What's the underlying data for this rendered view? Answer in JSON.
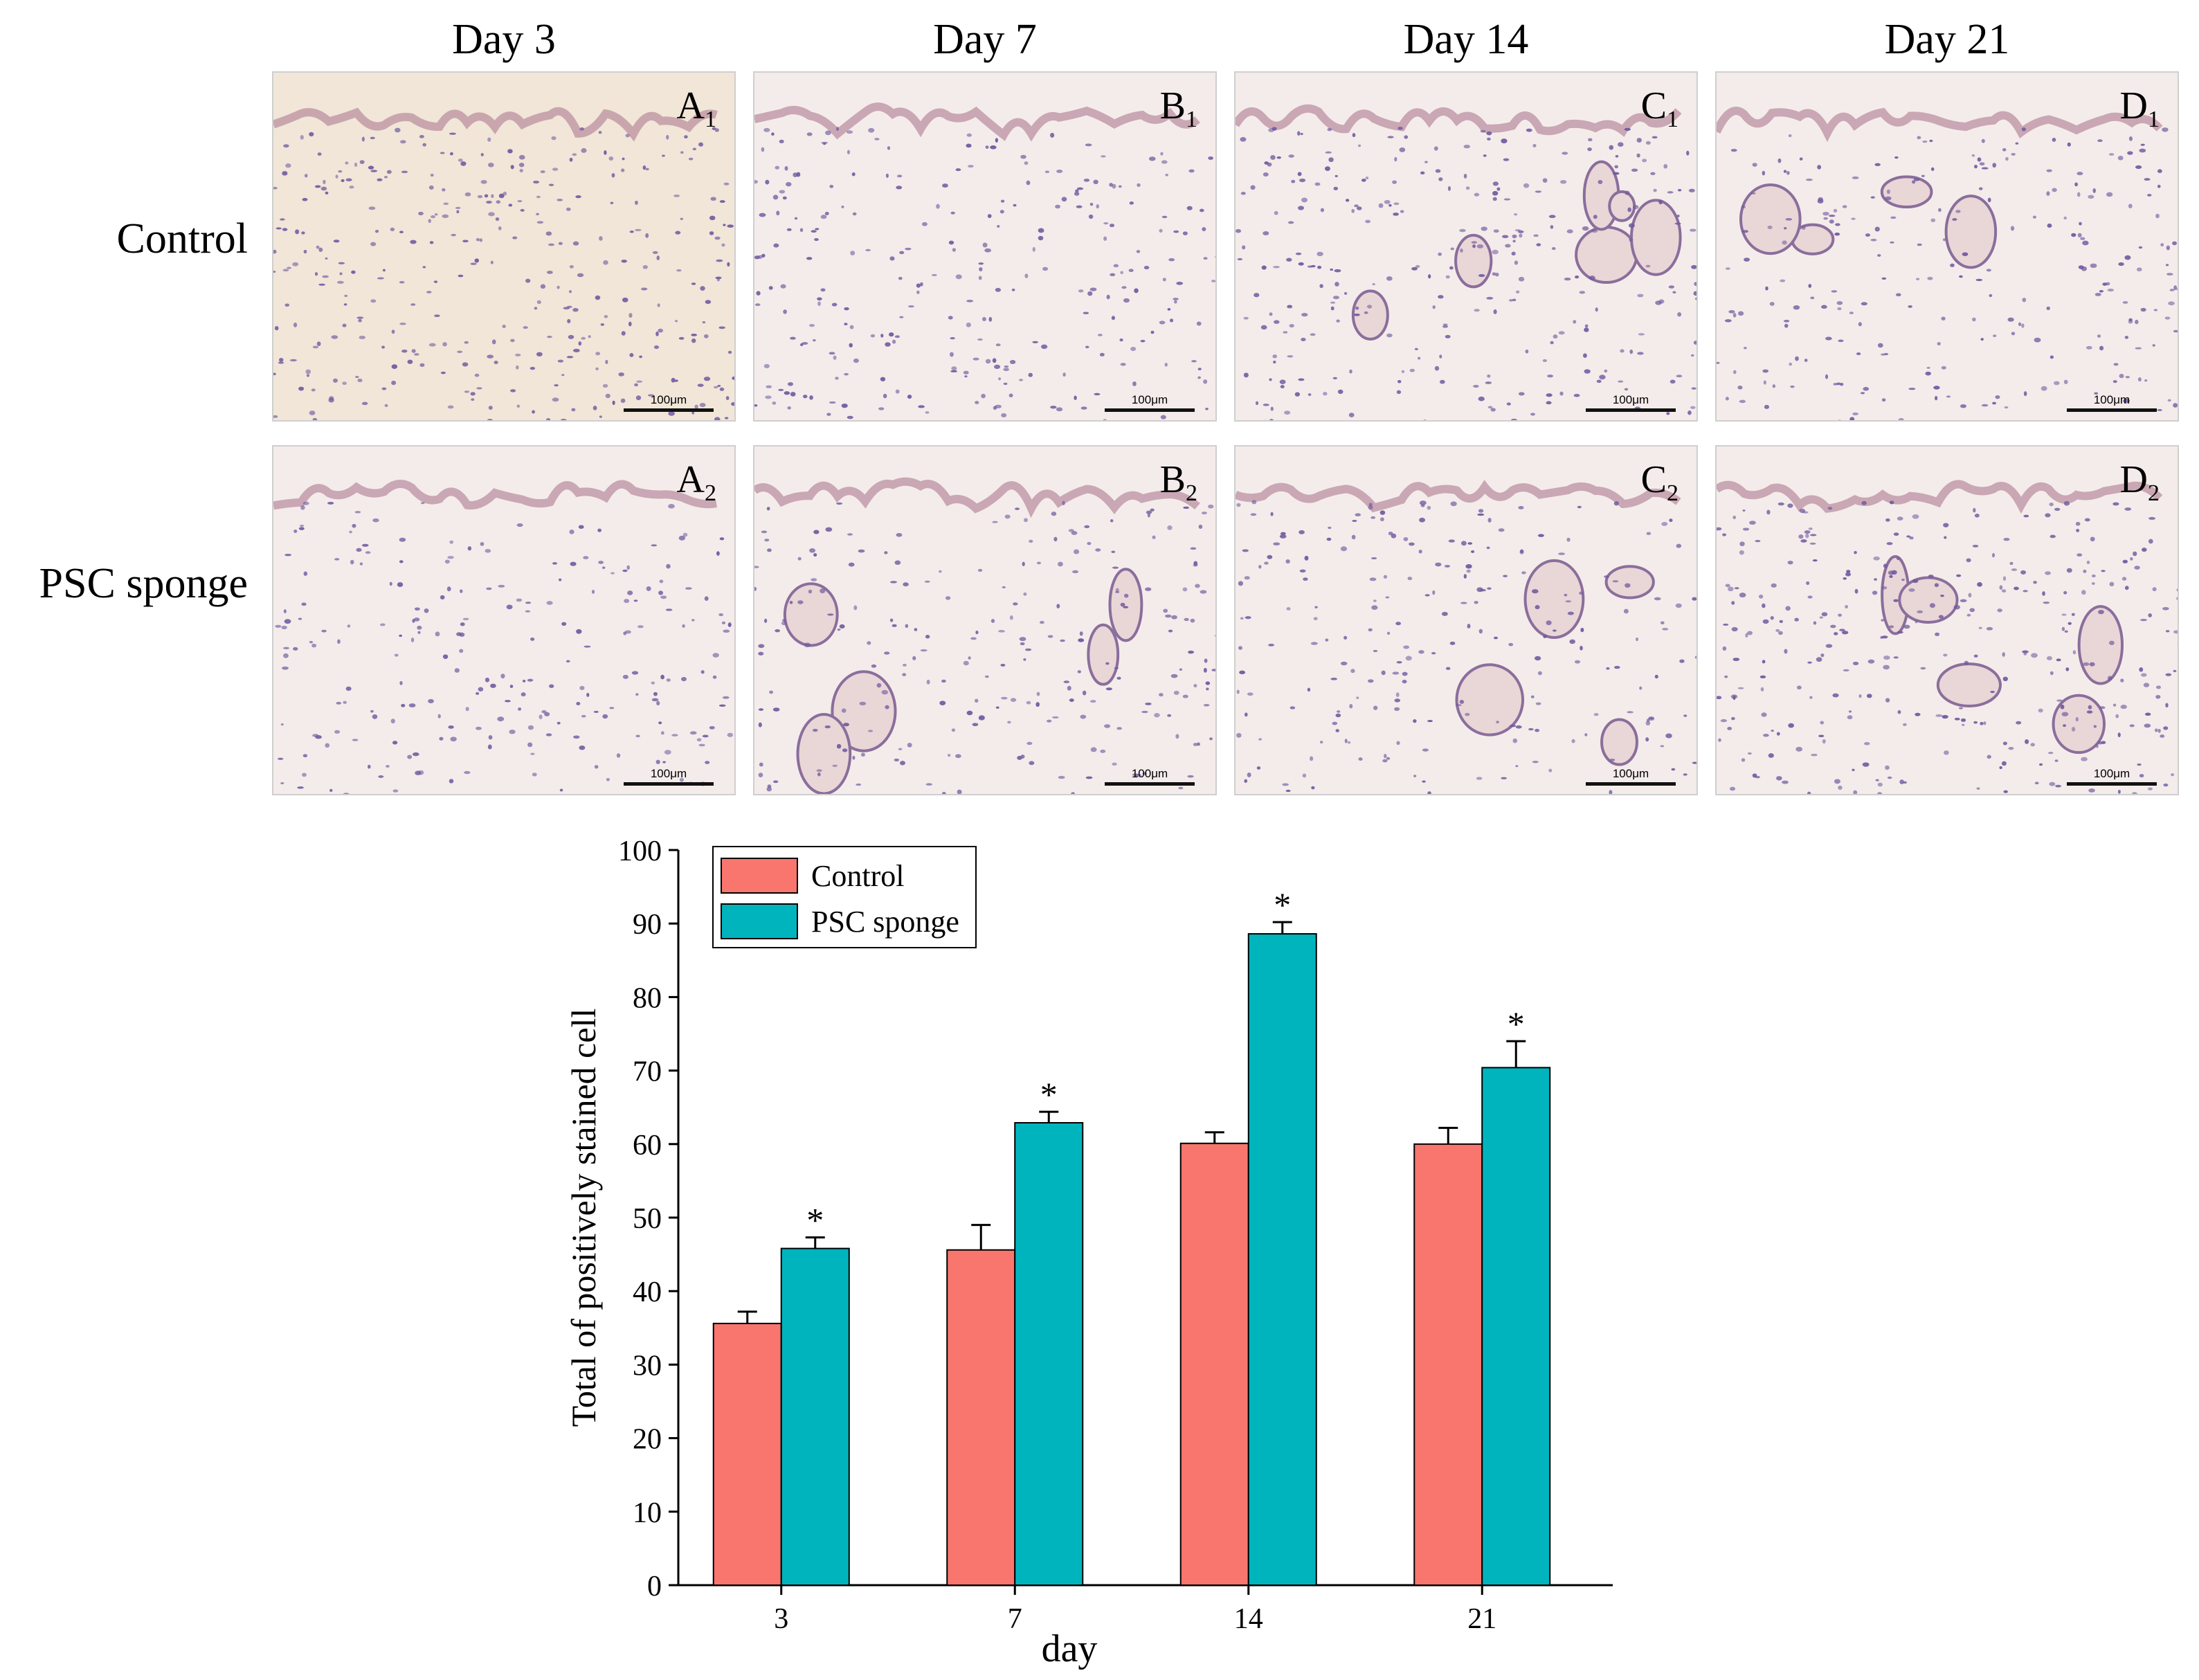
{
  "columns": [
    "Day 3",
    "Day 7",
    "Day 14",
    "Day 21"
  ],
  "rows": [
    "Control",
    "PSC sponge"
  ],
  "panels": [
    {
      "letter": "A",
      "sub": "1",
      "scale": "100μm"
    },
    {
      "letter": "B",
      "sub": "1",
      "scale": "100μm"
    },
    {
      "letter": "C",
      "sub": "1",
      "scale": "100μm"
    },
    {
      "letter": "D",
      "sub": "1",
      "scale": "100μm"
    },
    {
      "letter": "A",
      "sub": "2",
      "scale": "100μm"
    },
    {
      "letter": "B",
      "sub": "2",
      "scale": "100μm"
    },
    {
      "letter": "C",
      "sub": "2",
      "scale": "100μm"
    },
    {
      "letter": "D",
      "sub": "2",
      "scale": "100μm"
    }
  ],
  "colors": {
    "control": "#f8766d",
    "psc": "#00b4be",
    "tissue_bg": "#f4ecea",
    "nuclei": "#6f5aa0",
    "epidermis": "#b88a9c"
  },
  "chart_data": {
    "type": "bar",
    "categories": [
      "3",
      "7",
      "14",
      "21"
    ],
    "series": [
      {
        "name": "Control",
        "values": [
          35.6,
          45.6,
          60.1,
          60.0
        ],
        "errors": [
          1.6,
          3.4,
          1.5,
          2.2
        ]
      },
      {
        "name": "PSC sponge",
        "values": [
          45.8,
          62.9,
          88.6,
          70.4
        ],
        "errors": [
          1.5,
          1.5,
          1.6,
          3.6
        ]
      }
    ],
    "significance": [
      "*",
      "*",
      "*",
      "*"
    ],
    "xlabel": "day",
    "ylabel": "Total of positively stained cell",
    "ylim": [
      0,
      100
    ],
    "yticks": [
      0,
      10,
      20,
      30,
      40,
      50,
      60,
      70,
      80,
      90,
      100
    ],
    "legend": "top-left",
    "grid": false
  }
}
